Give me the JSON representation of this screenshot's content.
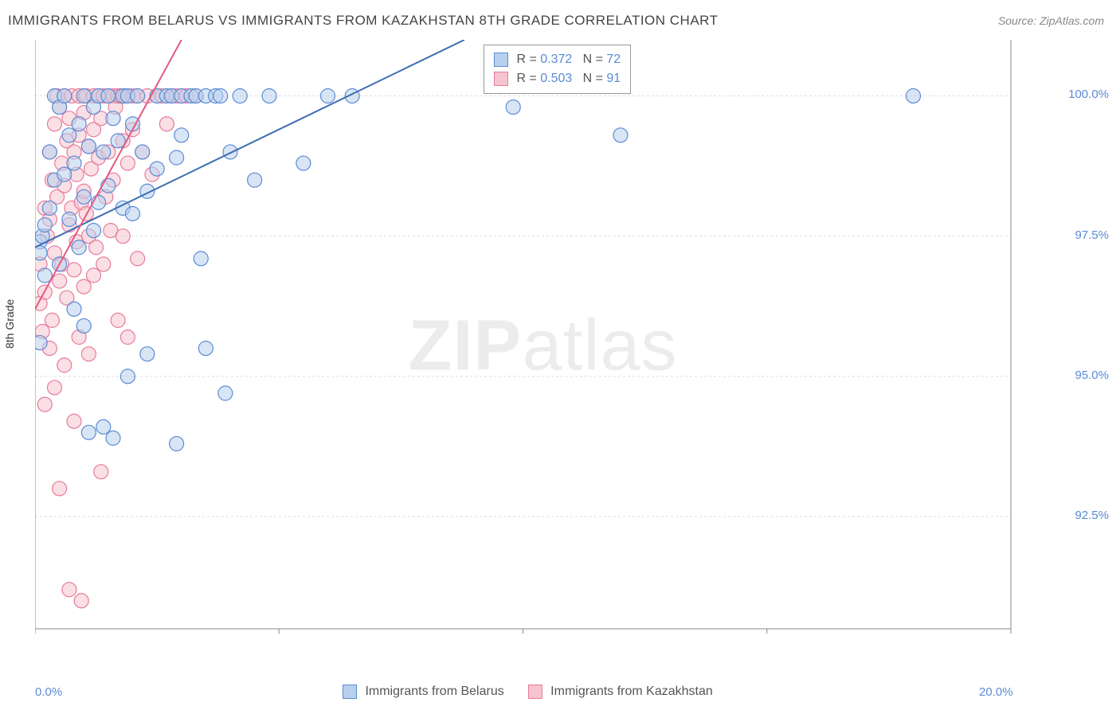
{
  "title": "IMMIGRANTS FROM BELARUS VS IMMIGRANTS FROM KAZAKHSTAN 8TH GRADE CORRELATION CHART",
  "source": "Source: ZipAtlas.com",
  "ylabel": "8th Grade",
  "watermark_bold": "ZIP",
  "watermark_light": "atlas",
  "chart": {
    "type": "scatter",
    "xlim": [
      0,
      20
    ],
    "ylim": [
      90.5,
      101
    ],
    "grid_color": "#dcdcdc",
    "background_color": "#ffffff",
    "axis_color": "#888888",
    "tick_color": "#5b8bd4",
    "marker_radius": 9,
    "marker_stroke_width": 1.2,
    "font": {
      "title_size": 17,
      "tick_size": 15,
      "legend_size": 16,
      "ylabel_size": 14
    },
    "xticks": [
      {
        "value": 0,
        "label": "0.0%"
      },
      {
        "value": 20,
        "label": "20.0%"
      }
    ],
    "xticks_minor": [
      5,
      10,
      15
    ],
    "yticks": [
      {
        "value": 92.5,
        "label": "92.5%"
      },
      {
        "value": 95.0,
        "label": "95.0%"
      },
      {
        "value": 97.5,
        "label": "97.5%"
      },
      {
        "value": 100.0,
        "label": "100.0%"
      }
    ],
    "series": [
      {
        "id": "belarus",
        "label": "Immigrants from Belarus",
        "fill": "#b8d0ed",
        "stroke": "#5b8bd4",
        "line_color": "#3d6db3",
        "stats": {
          "R": "0.372",
          "N": "72"
        },
        "trend": {
          "x1": 0,
          "y1": 97.3,
          "x2": 8.8,
          "y2": 101
        },
        "points": [
          [
            0.1,
            97.4
          ],
          [
            0.1,
            97.2
          ],
          [
            0.15,
            97.5
          ],
          [
            0.1,
            95.6
          ],
          [
            0.2,
            96.8
          ],
          [
            0.2,
            97.7
          ],
          [
            0.3,
            98.0
          ],
          [
            0.3,
            99.0
          ],
          [
            0.4,
            100.0
          ],
          [
            0.4,
            98.5
          ],
          [
            0.5,
            99.8
          ],
          [
            0.5,
            97.0
          ],
          [
            0.6,
            98.6
          ],
          [
            0.6,
            100.0
          ],
          [
            0.7,
            99.3
          ],
          [
            0.7,
            97.8
          ],
          [
            0.8,
            98.8
          ],
          [
            0.8,
            96.2
          ],
          [
            0.9,
            99.5
          ],
          [
            0.9,
            97.3
          ],
          [
            1.0,
            100.0
          ],
          [
            1.0,
            98.2
          ],
          [
            1.0,
            95.9
          ],
          [
            1.1,
            99.1
          ],
          [
            1.1,
            94.0
          ],
          [
            1.2,
            99.8
          ],
          [
            1.2,
            97.6
          ],
          [
            1.3,
            98.1
          ],
          [
            1.3,
            100.0
          ],
          [
            1.4,
            94.1
          ],
          [
            1.4,
            99.0
          ],
          [
            1.5,
            100.0
          ],
          [
            1.5,
            98.4
          ],
          [
            1.6,
            93.9
          ],
          [
            1.6,
            99.6
          ],
          [
            1.7,
            99.2
          ],
          [
            1.8,
            100.0
          ],
          [
            1.8,
            98.0
          ],
          [
            1.9,
            100.0
          ],
          [
            1.9,
            95.0
          ],
          [
            2.0,
            99.5
          ],
          [
            2.0,
            97.9
          ],
          [
            2.1,
            100.0
          ],
          [
            2.2,
            99.0
          ],
          [
            2.3,
            98.3
          ],
          [
            2.3,
            95.4
          ],
          [
            2.5,
            100.0
          ],
          [
            2.5,
            98.7
          ],
          [
            2.7,
            100.0
          ],
          [
            2.8,
            100.0
          ],
          [
            2.9,
            98.9
          ],
          [
            2.9,
            93.8
          ],
          [
            3.0,
            100.0
          ],
          [
            3.0,
            99.3
          ],
          [
            3.2,
            100.0
          ],
          [
            3.3,
            100.0
          ],
          [
            3.4,
            97.1
          ],
          [
            3.5,
            100.0
          ],
          [
            3.5,
            95.5
          ],
          [
            3.7,
            100.0
          ],
          [
            3.8,
            100.0
          ],
          [
            3.9,
            94.7
          ],
          [
            4.0,
            99.0
          ],
          [
            4.2,
            100.0
          ],
          [
            4.5,
            98.5
          ],
          [
            4.8,
            100.0
          ],
          [
            5.5,
            98.8
          ],
          [
            6.0,
            100.0
          ],
          [
            6.5,
            100.0
          ],
          [
            9.8,
            99.8
          ],
          [
            12.0,
            99.3
          ],
          [
            18.0,
            100.0
          ]
        ]
      },
      {
        "id": "kazakhstan",
        "label": "Immigrants from Kazakhstan",
        "fill": "#f5c4d0",
        "stroke": "#e87b9a",
        "line_color": "#e35a82",
        "stats": {
          "R": "0.503",
          "N": "91"
        },
        "trend": {
          "x1": 0,
          "y1": 96.2,
          "x2": 3.0,
          "y2": 101
        },
        "points": [
          [
            0.1,
            96.3
          ],
          [
            0.1,
            97.0
          ],
          [
            0.15,
            95.8
          ],
          [
            0.2,
            98.0
          ],
          [
            0.2,
            96.5
          ],
          [
            0.2,
            94.5
          ],
          [
            0.25,
            97.5
          ],
          [
            0.3,
            99.0
          ],
          [
            0.3,
            95.5
          ],
          [
            0.3,
            97.8
          ],
          [
            0.35,
            98.5
          ],
          [
            0.35,
            96.0
          ],
          [
            0.4,
            99.5
          ],
          [
            0.4,
            97.2
          ],
          [
            0.4,
            94.8
          ],
          [
            0.45,
            98.2
          ],
          [
            0.45,
            100.0
          ],
          [
            0.5,
            96.7
          ],
          [
            0.5,
            99.8
          ],
          [
            0.5,
            93.0
          ],
          [
            0.55,
            98.8
          ],
          [
            0.55,
            97.0
          ],
          [
            0.6,
            100.0
          ],
          [
            0.6,
            98.4
          ],
          [
            0.6,
            95.2
          ],
          [
            0.65,
            99.2
          ],
          [
            0.65,
            96.4
          ],
          [
            0.7,
            97.7
          ],
          [
            0.7,
            99.6
          ],
          [
            0.7,
            91.2
          ],
          [
            0.75,
            98.0
          ],
          [
            0.75,
            100.0
          ],
          [
            0.8,
            96.9
          ],
          [
            0.8,
            99.0
          ],
          [
            0.8,
            94.2
          ],
          [
            0.85,
            98.6
          ],
          [
            0.85,
            97.4
          ],
          [
            0.9,
            100.0
          ],
          [
            0.9,
            99.3
          ],
          [
            0.9,
            95.7
          ],
          [
            0.95,
            98.1
          ],
          [
            0.95,
            91.0
          ],
          [
            1.0,
            99.7
          ],
          [
            1.0,
            96.6
          ],
          [
            1.0,
            98.3
          ],
          [
            1.05,
            97.9
          ],
          [
            1.05,
            100.0
          ],
          [
            1.1,
            99.1
          ],
          [
            1.1,
            95.4
          ],
          [
            1.1,
            97.5
          ],
          [
            1.15,
            98.7
          ],
          [
            1.2,
            100.0
          ],
          [
            1.2,
            96.8
          ],
          [
            1.2,
            99.4
          ],
          [
            1.25,
            97.3
          ],
          [
            1.3,
            100.0
          ],
          [
            1.3,
            98.9
          ],
          [
            1.35,
            99.6
          ],
          [
            1.35,
            93.3
          ],
          [
            1.4,
            97.0
          ],
          [
            1.4,
            100.0
          ],
          [
            1.45,
            98.2
          ],
          [
            1.5,
            100.0
          ],
          [
            1.5,
            99.0
          ],
          [
            1.55,
            97.6
          ],
          [
            1.6,
            100.0
          ],
          [
            1.6,
            98.5
          ],
          [
            1.65,
            99.8
          ],
          [
            1.7,
            100.0
          ],
          [
            1.7,
            96.0
          ],
          [
            1.75,
            100.0
          ],
          [
            1.8,
            99.2
          ],
          [
            1.8,
            97.5
          ],
          [
            1.85,
            100.0
          ],
          [
            1.9,
            95.7
          ],
          [
            1.9,
            98.8
          ],
          [
            2.0,
            100.0
          ],
          [
            2.0,
            99.4
          ],
          [
            2.1,
            97.1
          ],
          [
            2.1,
            100.0
          ],
          [
            2.2,
            99.0
          ],
          [
            2.3,
            100.0
          ],
          [
            2.4,
            98.6
          ],
          [
            2.5,
            100.0
          ],
          [
            2.6,
            100.0
          ],
          [
            2.7,
            99.5
          ],
          [
            2.8,
            100.0
          ],
          [
            2.9,
            100.0
          ],
          [
            3.0,
            100.0
          ],
          [
            3.1,
            100.0
          ],
          [
            3.3,
            100.0
          ]
        ]
      }
    ]
  },
  "stats_labels": {
    "R": "R =",
    "N": "N ="
  }
}
